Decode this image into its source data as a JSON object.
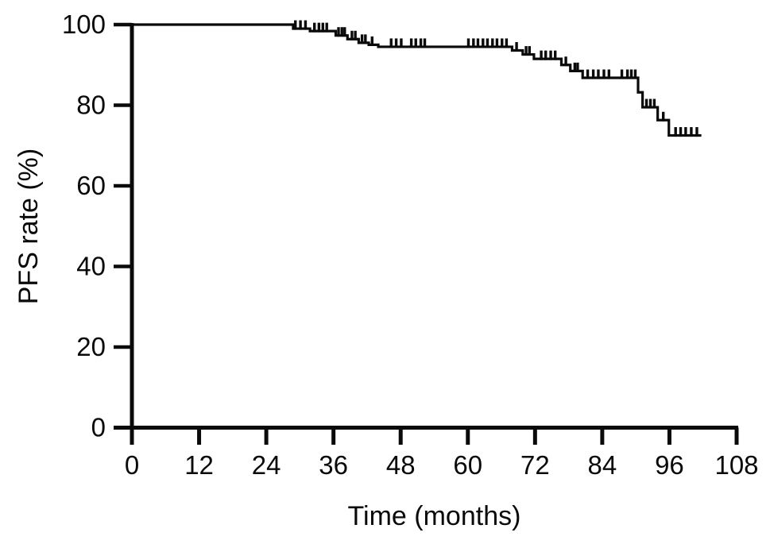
{
  "figure": {
    "background": "#ffffff",
    "ink_color": "#0a0a0a"
  },
  "chart_data": {
    "type": "line",
    "variant": "kaplan-meier-step",
    "title": "",
    "xlabel": "Time (months)",
    "ylabel": "PFS rate (%)",
    "xlim": [
      0,
      108
    ],
    "ylim": [
      0,
      100
    ],
    "xticks": [
      0,
      12,
      24,
      36,
      48,
      60,
      72,
      84,
      96,
      108
    ],
    "yticks": [
      0,
      20,
      40,
      60,
      80,
      100
    ],
    "grid": false,
    "legend": "none",
    "series": [
      {
        "name": "PFS rate",
        "color": "#0a0a0a",
        "start": {
          "time": 0,
          "survival": 100
        },
        "end_time": 101.7,
        "drops": [
          {
            "time": 28.8,
            "survival": 99.0
          },
          {
            "time": 31.8,
            "survival": 98.4
          },
          {
            "time": 36.4,
            "survival": 97.3
          },
          {
            "time": 38.5,
            "survival": 96.4
          },
          {
            "time": 40.5,
            "survival": 95.5
          },
          {
            "time": 42.3,
            "survival": 95.0
          },
          {
            "time": 44.0,
            "survival": 94.5
          },
          {
            "time": 67.9,
            "survival": 93.6
          },
          {
            "time": 69.8,
            "survival": 92.6
          },
          {
            "time": 71.8,
            "survival": 91.5
          },
          {
            "time": 76.7,
            "survival": 90.0
          },
          {
            "time": 78.3,
            "survival": 88.5
          },
          {
            "time": 80.5,
            "survival": 86.8
          },
          {
            "time": 90.4,
            "survival": 83.2
          },
          {
            "time": 91.2,
            "survival": 79.5
          },
          {
            "time": 93.9,
            "survival": 76.3
          },
          {
            "time": 95.9,
            "survival": 72.5
          }
        ],
        "censor_times": [
          29.2,
          30.1,
          31.0,
          32.6,
          33.4,
          34.1,
          34.8,
          36.9,
          37.5,
          38.0,
          39.3,
          39.9,
          41.1,
          41.7,
          42.9,
          46.3,
          47.2,
          48.1,
          49.9,
          50.7,
          51.6,
          52.3,
          60.1,
          61.0,
          61.8,
          62.7,
          63.5,
          64.4,
          65.2,
          66.1,
          66.9,
          68.7,
          70.4,
          71.0,
          73.1,
          73.9,
          74.8,
          75.6,
          77.5,
          79.1,
          79.6,
          81.4,
          82.4,
          83.3,
          84.3,
          85.2,
          87.5,
          88.5,
          89.2,
          89.9,
          91.9,
          92.6,
          93.3,
          94.9,
          97.1,
          98.0,
          98.9,
          99.9,
          100.9
        ]
      }
    ]
  }
}
